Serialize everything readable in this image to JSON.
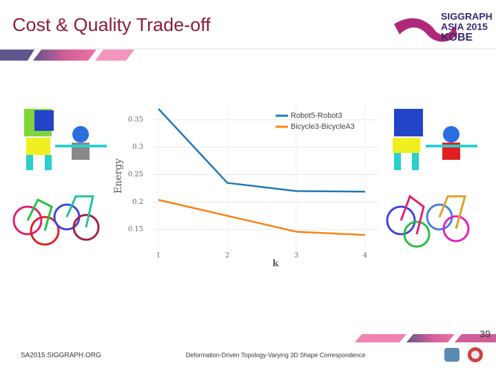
{
  "header": {
    "title": "Cost & Quality Trade-off",
    "logo": [
      "SIGGRAPH",
      "ASIA 2015",
      "KOBE"
    ]
  },
  "chart_data": {
    "type": "line",
    "x": [
      1,
      2,
      3,
      4
    ],
    "series": [
      {
        "name": "Robot5-Robot3",
        "color": "#1f77b4",
        "values": [
          0.37,
          0.235,
          0.22,
          0.219
        ]
      },
      {
        "name": "Bicycle3-BicycleA3",
        "color": "#ff7f0e",
        "values": [
          0.204,
          0.175,
          0.146,
          0.14
        ]
      }
    ],
    "xlim": [
      0.9,
      4.2
    ],
    "xticks": [
      1,
      2,
      3,
      4
    ],
    "ylim": [
      0.11,
      0.38
    ],
    "yticks": [
      0.15,
      0.2,
      0.25,
      0.3,
      0.35
    ],
    "x_label": "k",
    "y_label": "Energy",
    "grid": true,
    "legend": "top-right"
  },
  "footer": {
    "url": "SA2015.SIGGRAPH.ORG",
    "subtitle": "Deformation-Driven Topology-Varying 3D Shape Correspondence",
    "page": "39"
  }
}
